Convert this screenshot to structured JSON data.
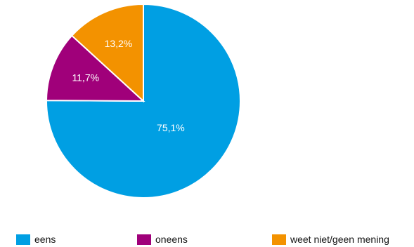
{
  "chart_data": {
    "type": "pie",
    "categories": [
      "eens",
      "oneens",
      "weet niet/geen mening"
    ],
    "values": [
      75.1,
      11.7,
      13.2
    ],
    "value_labels": [
      "75,1%",
      "11,7%",
      "13,2%"
    ],
    "colors": [
      "#009fe3",
      "#a0007a",
      "#f39200"
    ],
    "legend_position": "bottom"
  },
  "legend": {
    "items": [
      {
        "label": "eens",
        "color": "#009fe3"
      },
      {
        "label": "oneens",
        "color": "#a0007a"
      },
      {
        "label": "weet niet/geen mening",
        "color": "#f39200"
      }
    ]
  }
}
